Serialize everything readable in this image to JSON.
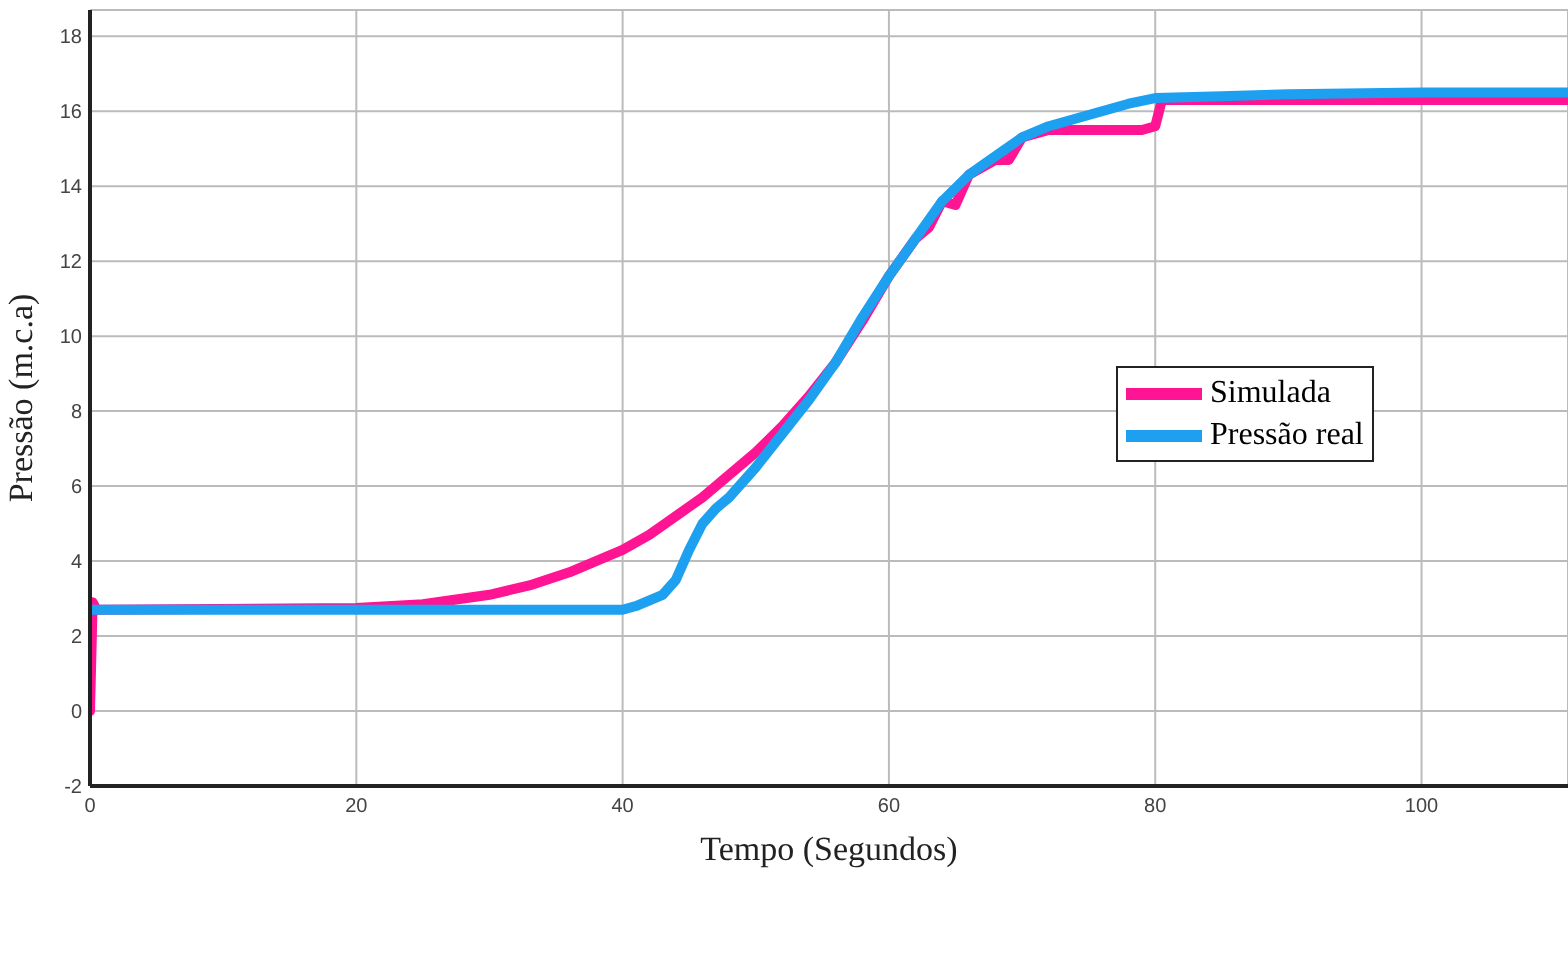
{
  "chart_data": {
    "type": "line",
    "xlabel": "Tempo (Segundos)",
    "ylabel": "Pressão (m.c.a)",
    "xlim": [
      0,
      111
    ],
    "xticks": [
      0,
      20,
      40,
      60,
      80,
      100
    ],
    "ylim": [
      -2,
      18.7
    ],
    "yticks": [
      -2,
      0,
      2,
      4,
      6,
      8,
      10,
      12,
      14,
      16,
      18
    ],
    "grid": true,
    "legend": "right",
    "marker": "none",
    "line_style": "solid",
    "series": [
      {
        "name": "Simulada",
        "color": "#ff1493",
        "x": [
          0,
          0.2,
          0.5,
          20,
          25,
          30,
          33,
          36,
          38,
          40,
          42,
          44,
          46,
          48,
          50,
          52,
          54,
          56,
          58,
          60,
          62,
          63,
          64,
          65,
          66,
          68,
          69,
          70,
          72,
          74,
          76,
          79,
          80,
          80.5,
          85,
          90,
          100,
          111
        ],
        "values": [
          0,
          2.9,
          2.7,
          2.75,
          2.85,
          3.1,
          3.35,
          3.7,
          4.0,
          4.3,
          4.7,
          5.2,
          5.7,
          6.3,
          6.9,
          7.6,
          8.4,
          9.3,
          10.4,
          11.6,
          12.6,
          12.9,
          13.6,
          13.5,
          14.3,
          14.7,
          14.7,
          15.3,
          15.5,
          15.5,
          15.5,
          15.5,
          15.6,
          16.3,
          16.3,
          16.3,
          16.3,
          16.3
        ]
      },
      {
        "name": "Pressão real",
        "color": "#1ea0f0",
        "x": [
          0,
          20,
          40,
          41,
          43,
          44,
          45,
          46,
          47,
          48,
          50,
          52,
          54,
          56,
          58,
          60,
          62,
          64,
          66,
          68,
          70,
          72,
          75,
          78,
          80,
          85,
          90,
          100,
          111
        ],
        "values": [
          2.7,
          2.7,
          2.7,
          2.8,
          3.1,
          3.5,
          4.3,
          5.0,
          5.4,
          5.7,
          6.5,
          7.4,
          8.3,
          9.3,
          10.5,
          11.6,
          12.6,
          13.6,
          14.3,
          14.8,
          15.3,
          15.6,
          15.9,
          16.2,
          16.35,
          16.4,
          16.45,
          16.5,
          16.5
        ]
      }
    ]
  }
}
